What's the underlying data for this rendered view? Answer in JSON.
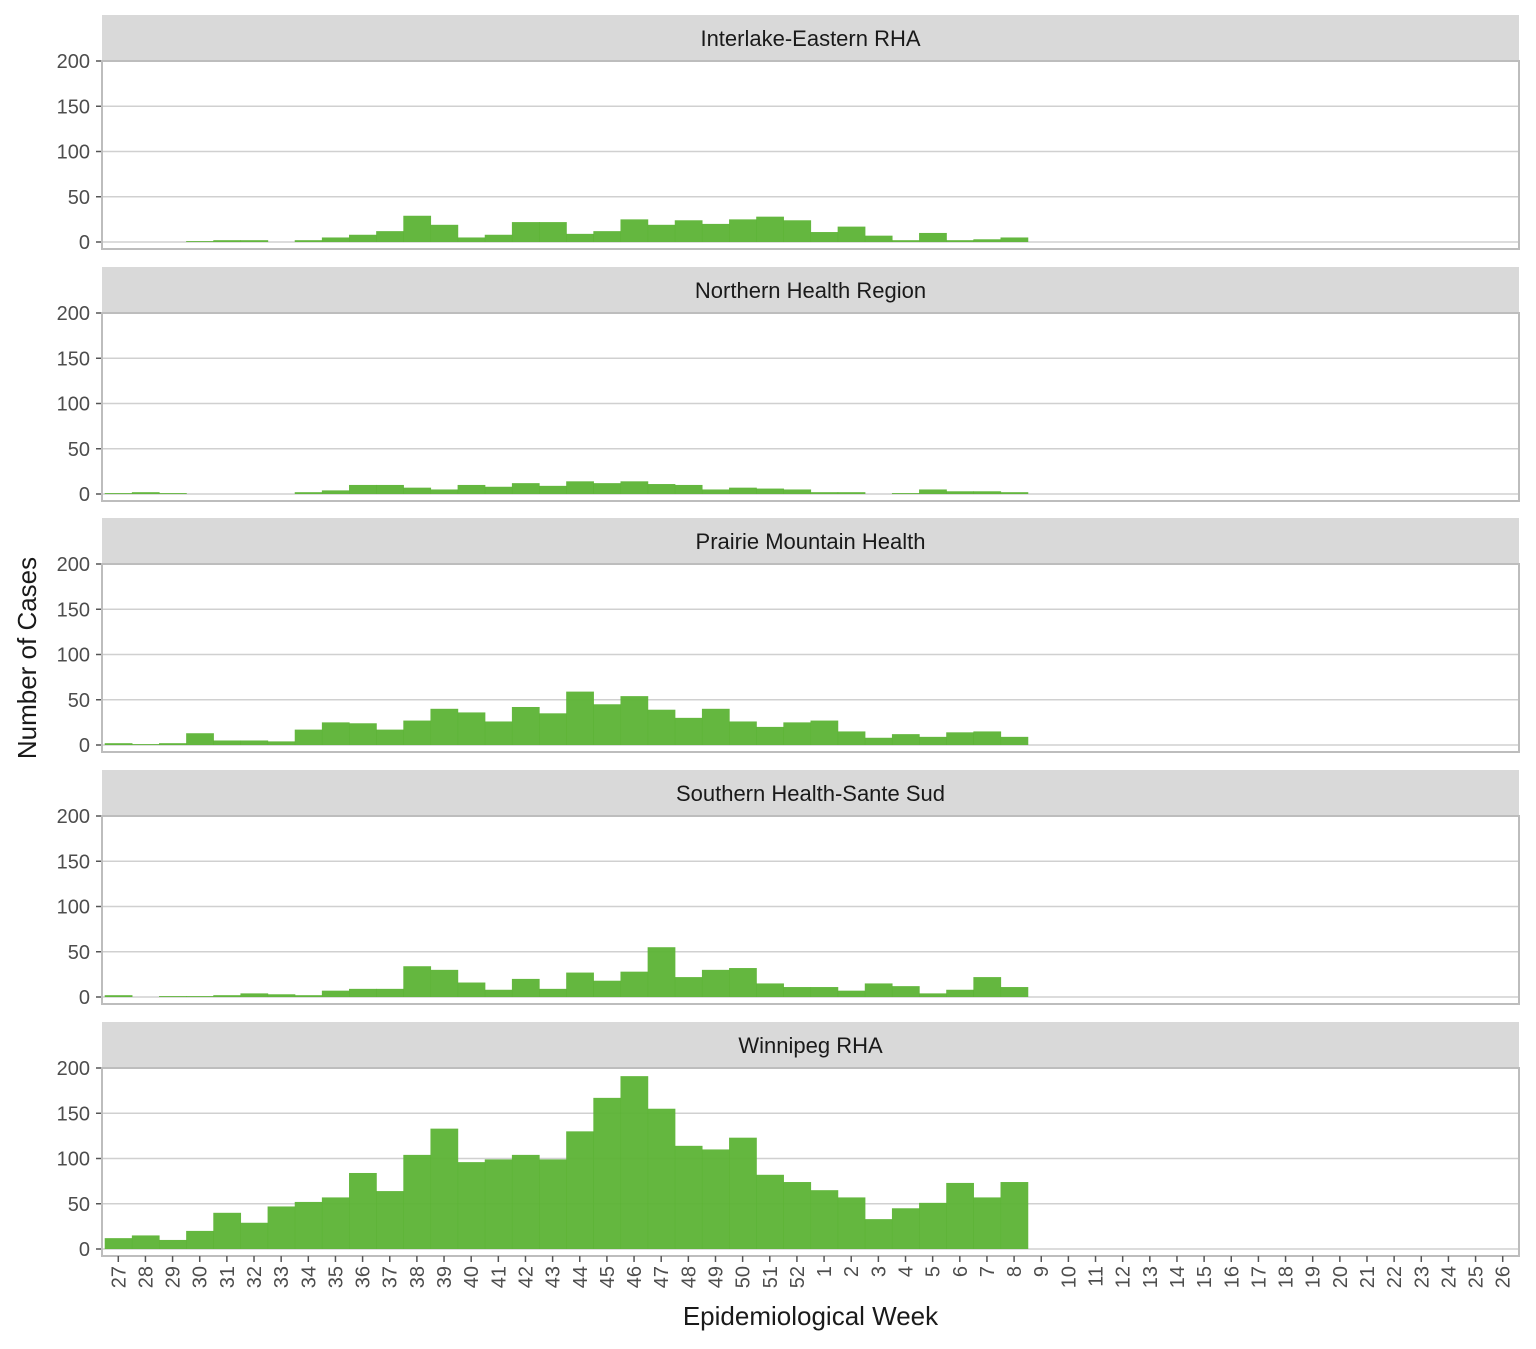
{
  "chart_data": {
    "type": "bar",
    "layout": "faceted-small-multiples",
    "xlabel": "Epidemiological Week",
    "ylabel": "Number of Cases",
    "ylim": [
      0,
      200
    ],
    "yticks": [
      "0",
      "50",
      "100",
      "150",
      "200"
    ],
    "grid": true,
    "bar_color": "#5cb335",
    "strip_color": "#d9d9d9",
    "categories": [
      "27",
      "28",
      "29",
      "30",
      "31",
      "32",
      "33",
      "34",
      "35",
      "36",
      "37",
      "38",
      "39",
      "40",
      "41",
      "42",
      "43",
      "44",
      "45",
      "46",
      "47",
      "48",
      "49",
      "50",
      "51",
      "52",
      "1",
      "2",
      "3",
      "4",
      "5",
      "6",
      "7",
      "8",
      "9",
      "10",
      "11",
      "12",
      "13",
      "14",
      "15",
      "16",
      "17",
      "18",
      "19",
      "20",
      "21",
      "22",
      "23",
      "24",
      "25",
      "26"
    ],
    "panels": [
      {
        "name": "Interlake-Eastern RHA",
        "values": [
          0,
          0,
          0,
          1,
          2,
          2,
          0,
          2,
          5,
          8,
          12,
          29,
          19,
          5,
          8,
          22,
          22,
          9,
          12,
          25,
          19,
          24,
          20,
          25,
          28,
          24,
          11,
          17,
          7,
          2,
          10,
          2,
          3,
          5
        ]
      },
      {
        "name": "Northern Health Region",
        "values": [
          1,
          2,
          1,
          0,
          0,
          0,
          0,
          2,
          4,
          10,
          10,
          7,
          5,
          10,
          8,
          12,
          9,
          14,
          12,
          14,
          11,
          10,
          5,
          7,
          6,
          5,
          2,
          2,
          0,
          1,
          5,
          3,
          3,
          2
        ]
      },
      {
        "name": "Prairie Mountain Health",
        "values": [
          2,
          1,
          2,
          13,
          5,
          5,
          4,
          17,
          25,
          24,
          17,
          27,
          40,
          36,
          26,
          42,
          35,
          59,
          45,
          54,
          39,
          30,
          40,
          26,
          20,
          25,
          27,
          15,
          8,
          12,
          9,
          14,
          15,
          9
        ]
      },
      {
        "name": "Southern Health-Sante Sud",
        "values": [
          2,
          0,
          1,
          1,
          2,
          4,
          3,
          2,
          7,
          9,
          9,
          34,
          30,
          16,
          8,
          20,
          9,
          27,
          18,
          28,
          55,
          22,
          30,
          32,
          15,
          11,
          11,
          7,
          15,
          12,
          4,
          8,
          22,
          11
        ]
      },
      {
        "name": "Winnipeg RHA",
        "values": [
          12,
          15,
          10,
          20,
          40,
          29,
          47,
          52,
          57,
          84,
          64,
          104,
          133,
          96,
          99,
          104,
          99,
          130,
          167,
          191,
          155,
          114,
          110,
          123,
          82,
          74,
          65,
          57,
          33,
          45,
          51,
          73,
          57,
          74
        ]
      }
    ]
  }
}
